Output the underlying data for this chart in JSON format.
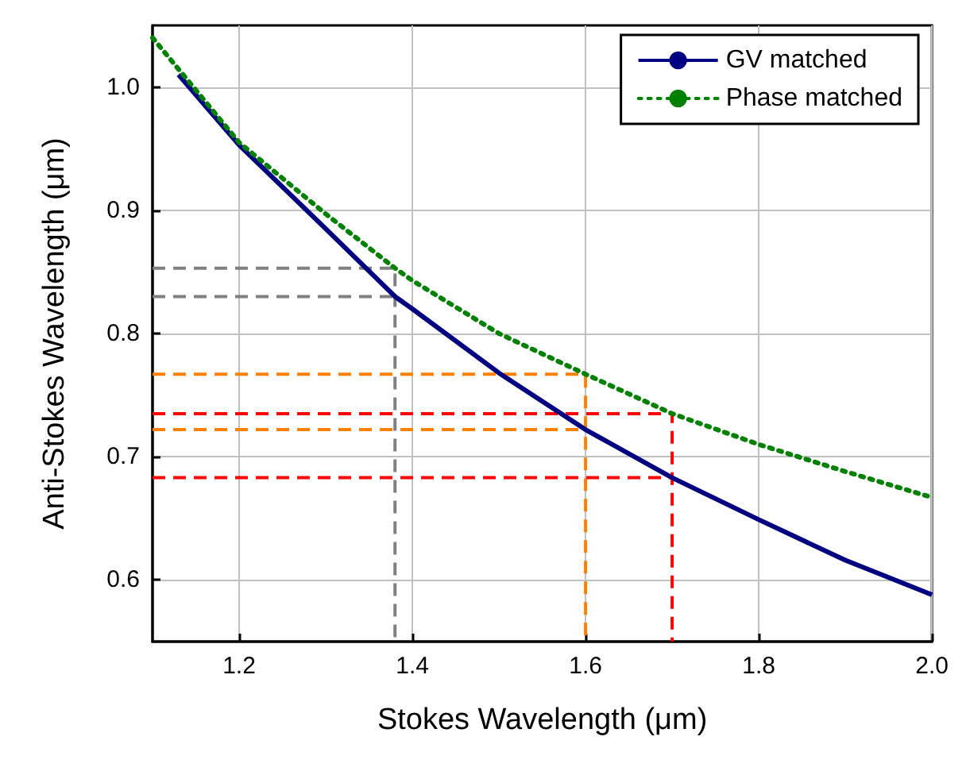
{
  "chart_data": {
    "type": "line",
    "xlabel": "Stokes Wavelength (μm)",
    "ylabel": "Anti-Stokes Wavelength (μm)",
    "xlim": [
      1.1,
      2.0
    ],
    "ylim": [
      0.55,
      1.05
    ],
    "xticks": [
      1.2,
      1.4,
      1.6,
      1.8,
      {
        "value": 2.0,
        "label": "2.0"
      }
    ],
    "yticks": [
      0.6,
      0.7,
      0.8,
      0.9,
      {
        "value": 1.0,
        "label": "1.0"
      }
    ],
    "grid": true,
    "legend": "top right",
    "marker": "none",
    "series": [
      {
        "name": "GV matched",
        "color": "#000080",
        "line_style": "solid",
        "x": [
          1.13,
          1.2,
          1.3,
          1.38,
          1.4,
          1.5,
          1.6,
          1.7,
          1.8,
          1.9,
          2.0
        ],
        "values": [
          1.01,
          0.953,
          0.885,
          0.83,
          0.82,
          0.768,
          0.722,
          0.683,
          0.649,
          0.616,
          0.588
        ]
      },
      {
        "name": "Phase matched",
        "color": "#008000",
        "line_style": "dotted",
        "x": [
          1.1,
          1.2,
          1.3,
          1.38,
          1.4,
          1.5,
          1.6,
          1.7,
          1.8,
          1.9,
          2.0
        ],
        "values": [
          1.04,
          0.955,
          0.897,
          0.853,
          0.843,
          0.8,
          0.767,
          0.735,
          0.71,
          0.688,
          0.667
        ]
      },
      {
        "color": "#808080",
        "line_style": "dashed",
        "x": [
          1.1,
          1.38,
          1.38
        ],
        "values": [
          0.853,
          0.853,
          0.55
        ]
      },
      {
        "color": "#808080",
        "line_style": "dashed",
        "x": [
          1.1,
          1.38
        ],
        "values": [
          0.83,
          0.83
        ]
      },
      {
        "color": "#ff8000",
        "line_style": "dashed",
        "x": [
          1.1,
          1.6,
          1.6
        ],
        "values": [
          0.767,
          0.767,
          0.55
        ]
      },
      {
        "color": "#ff8000",
        "line_style": "dashed",
        "x": [
          1.1,
          1.6
        ],
        "values": [
          0.722,
          0.722
        ]
      },
      {
        "color": "#ff0000",
        "line_style": "dashed",
        "x": [
          1.1,
          1.7,
          1.7
        ],
        "values": [
          0.735,
          0.735,
          0.55
        ]
      },
      {
        "color": "#ff0000",
        "line_style": "dashed",
        "x": [
          1.1,
          1.7
        ],
        "values": [
          0.683,
          0.683
        ]
      }
    ]
  }
}
